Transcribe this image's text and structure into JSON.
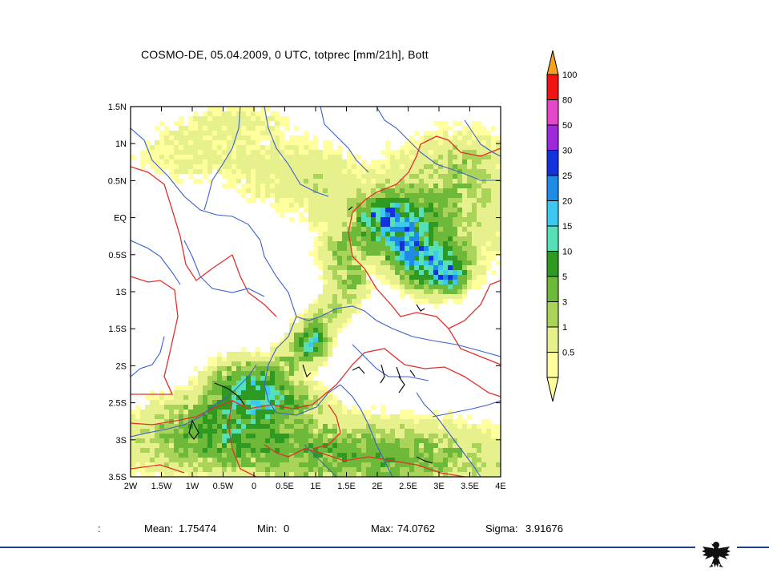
{
  "chart_data": {
    "type": "heatmap",
    "title": "COSMO-DE, 05.04.2009, 0 UTC, totprec [mm/21h], Bott",
    "x_ticks": [
      "2W",
      "1.5W",
      "1W",
      "0.5W",
      "0",
      "0.5E",
      "1E",
      "1.5E",
      "2E",
      "2.5E",
      "3E",
      "3.5E",
      "4E"
    ],
    "y_ticks": [
      "1.5N",
      "1N",
      "0.5N",
      "EQ",
      "0.5S",
      "1S",
      "1.5S",
      "2S",
      "2.5S",
      "3S",
      "3.5S"
    ],
    "xlim": [
      -2,
      4
    ],
    "ylim": [
      -3.5,
      1.5
    ],
    "colorbar": {
      "labels": [
        "0.5",
        "1",
        "3",
        "5",
        "10",
        "15",
        "20",
        "25",
        "30",
        "50",
        "80",
        "100"
      ],
      "colors": [
        "#ffff9e",
        "#e6f08c",
        "#aad35a",
        "#6eb83a",
        "#2f9a22",
        "#55e0b8",
        "#3cc8f0",
        "#1e8ce6",
        "#1432dc",
        "#a028dc",
        "#e646c8",
        "#f01414",
        "#f5a01e"
      ]
    },
    "stats": {
      "mean": "1.75474",
      "min": "0",
      "max": "74.0762",
      "sigma": "3.91676"
    }
  },
  "labels": {
    "prefix": ":",
    "mean": "Mean:",
    "min": "Min:",
    "max": "Max:",
    "sigma": "Sigma:"
  }
}
